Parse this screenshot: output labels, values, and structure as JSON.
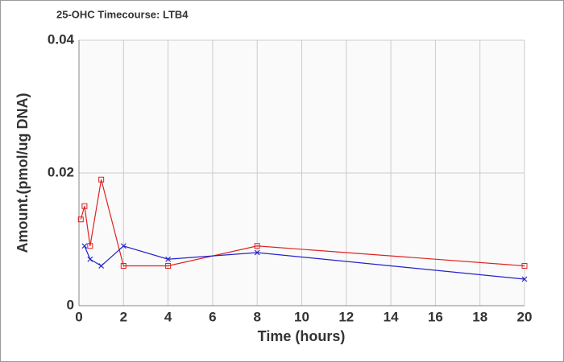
{
  "chart_data": {
    "type": "line",
    "title": "25-OHC Timecourse: LTB4",
    "x_label": "Time (hours)",
    "y_label": "Amount.(pmol/ug DNA)",
    "xlim": [
      0,
      20
    ],
    "xticks": [
      0,
      2,
      4,
      6,
      8,
      10,
      12,
      14,
      16,
      18,
      20
    ],
    "ylim": [
      0,
      0.04
    ],
    "yticks": [
      0,
      0.02,
      0.04
    ],
    "grid": true,
    "series": [
      {
        "color": "#dd2222",
        "marker": "square",
        "x": [
          0.083,
          0.25,
          0.5,
          1,
          2,
          4,
          8,
          20
        ],
        "values": [
          0.013,
          0.015,
          0.009,
          0.019,
          0.006,
          0.006,
          0.009,
          0.006
        ]
      },
      {
        "color": "#2222cc",
        "marker": "cross",
        "x": [
          0.25,
          0.5,
          1,
          2,
          4,
          8,
          20
        ],
        "values": [
          0.009,
          0.007,
          0.006,
          0.009,
          0.007,
          0.008,
          0.004
        ]
      }
    ]
  }
}
